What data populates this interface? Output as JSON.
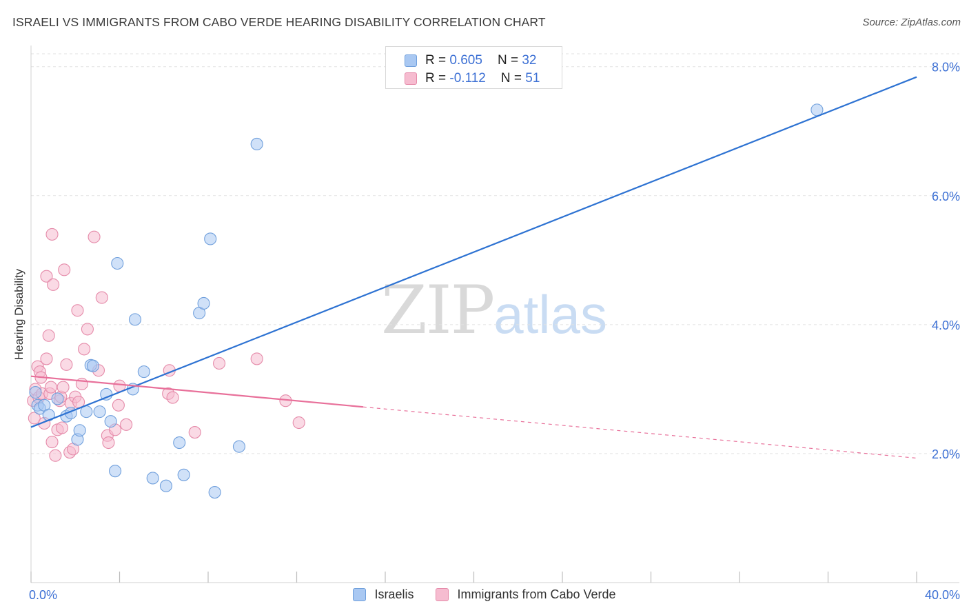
{
  "title": "ISRAELI VS IMMIGRANTS FROM CABO VERDE HEARING DISABILITY CORRELATION CHART",
  "source": "Source: ZipAtlas.com",
  "watermark": {
    "zip": "ZIP",
    "atlas": "atlas"
  },
  "legend_top": [
    {
      "r_label": "R =",
      "r_value": "0.605",
      "n_label": "N =",
      "n_value": "32"
    },
    {
      "r_label": "R =",
      "r_value": "-0.112",
      "n_label": "N =",
      "n_value": "51"
    }
  ],
  "legend_bottom": [
    "Israelis",
    "Immigrants from Cabo Verde"
  ],
  "colors": {
    "blue_fill": "#a9c8f2",
    "blue_stroke": "#6f9fdc",
    "blue_line": "#2d72d2",
    "pink_fill": "#f6bcd0",
    "pink_stroke": "#e58aa9",
    "pink_line": "#e8709a",
    "grid": "#e2e2e2",
    "axis_text": "#3b6fd4"
  },
  "chart_data": {
    "type": "scatter",
    "xlabel": "",
    "ylabel": "Hearing Disability",
    "xlim": [
      0,
      40
    ],
    "ylim": [
      0,
      8.2
    ],
    "x_tick_labels": [
      "0.0%",
      "40.0%"
    ],
    "y_ticks": [
      2,
      4,
      6,
      8
    ],
    "y_tick_labels": [
      "2.0%",
      "4.0%",
      "6.0%",
      "8.0%"
    ],
    "grid": true,
    "legend_placement": "top-center",
    "series": [
      {
        "name": "Israelis",
        "points": [
          [
            0.2,
            2.95
          ],
          [
            0.3,
            2.75
          ],
          [
            0.4,
            2.7
          ],
          [
            0.6,
            2.75
          ],
          [
            0.8,
            2.6
          ],
          [
            1.2,
            2.85
          ],
          [
            1.6,
            2.58
          ],
          [
            1.8,
            2.63
          ],
          [
            2.1,
            2.22
          ],
          [
            2.2,
            2.36
          ],
          [
            2.5,
            2.65
          ],
          [
            2.7,
            3.37
          ],
          [
            2.8,
            3.36
          ],
          [
            3.1,
            2.65
          ],
          [
            3.4,
            2.92
          ],
          [
            3.6,
            2.5
          ],
          [
            3.8,
            1.73
          ],
          [
            3.9,
            4.95
          ],
          [
            4.6,
            3.0
          ],
          [
            4.7,
            4.08
          ],
          [
            5.1,
            3.27
          ],
          [
            5.5,
            1.62
          ],
          [
            6.1,
            1.5
          ],
          [
            6.7,
            2.17
          ],
          [
            6.9,
            1.67
          ],
          [
            7.6,
            4.18
          ],
          [
            7.8,
            4.33
          ],
          [
            8.1,
            5.33
          ],
          [
            8.3,
            1.4
          ],
          [
            9.4,
            2.11
          ],
          [
            10.2,
            6.8
          ],
          [
            35.5,
            7.33
          ]
        ]
      },
      {
        "name": "Immigrants from Cabo Verde",
        "points": [
          [
            0.1,
            2.82
          ],
          [
            0.15,
            2.55
          ],
          [
            0.2,
            3.0
          ],
          [
            0.3,
            3.35
          ],
          [
            0.35,
            2.87
          ],
          [
            0.4,
            3.27
          ],
          [
            0.45,
            3.18
          ],
          [
            0.5,
            2.93
          ],
          [
            0.6,
            2.47
          ],
          [
            0.7,
            3.47
          ],
          [
            0.7,
            4.75
          ],
          [
            0.8,
            3.83
          ],
          [
            0.85,
            2.93
          ],
          [
            0.9,
            3.03
          ],
          [
            0.95,
            2.18
          ],
          [
            0.95,
            5.4
          ],
          [
            1.0,
            4.62
          ],
          [
            1.1,
            1.97
          ],
          [
            1.2,
            2.37
          ],
          [
            1.3,
            2.82
          ],
          [
            1.35,
            2.88
          ],
          [
            1.4,
            2.4
          ],
          [
            1.45,
            3.03
          ],
          [
            1.5,
            4.85
          ],
          [
            1.6,
            3.38
          ],
          [
            1.75,
            2.02
          ],
          [
            1.8,
            2.78
          ],
          [
            1.9,
            2.07
          ],
          [
            2.0,
            2.88
          ],
          [
            2.1,
            4.22
          ],
          [
            2.15,
            2.8
          ],
          [
            2.3,
            3.08
          ],
          [
            2.4,
            3.62
          ],
          [
            2.55,
            3.93
          ],
          [
            2.85,
            5.36
          ],
          [
            3.05,
            3.29
          ],
          [
            3.2,
            4.42
          ],
          [
            3.45,
            2.28
          ],
          [
            3.5,
            2.17
          ],
          [
            3.8,
            2.37
          ],
          [
            3.95,
            2.75
          ],
          [
            4.0,
            3.05
          ],
          [
            4.3,
            2.45
          ],
          [
            6.2,
            2.93
          ],
          [
            6.25,
            3.29
          ],
          [
            6.4,
            2.87
          ],
          [
            7.4,
            2.33
          ],
          [
            8.5,
            3.4
          ],
          [
            10.2,
            3.47
          ],
          [
            11.5,
            2.82
          ],
          [
            12.1,
            2.48
          ]
        ]
      }
    ],
    "trendlines": [
      {
        "series": "Israelis",
        "from": [
          0,
          2.41
        ],
        "to": [
          40,
          7.84
        ],
        "dashed_from": null
      },
      {
        "series": "Immigrants from Cabo Verde",
        "from": [
          0,
          3.2
        ],
        "to": [
          40,
          1.93
        ],
        "dashed_from": 15
      }
    ]
  }
}
